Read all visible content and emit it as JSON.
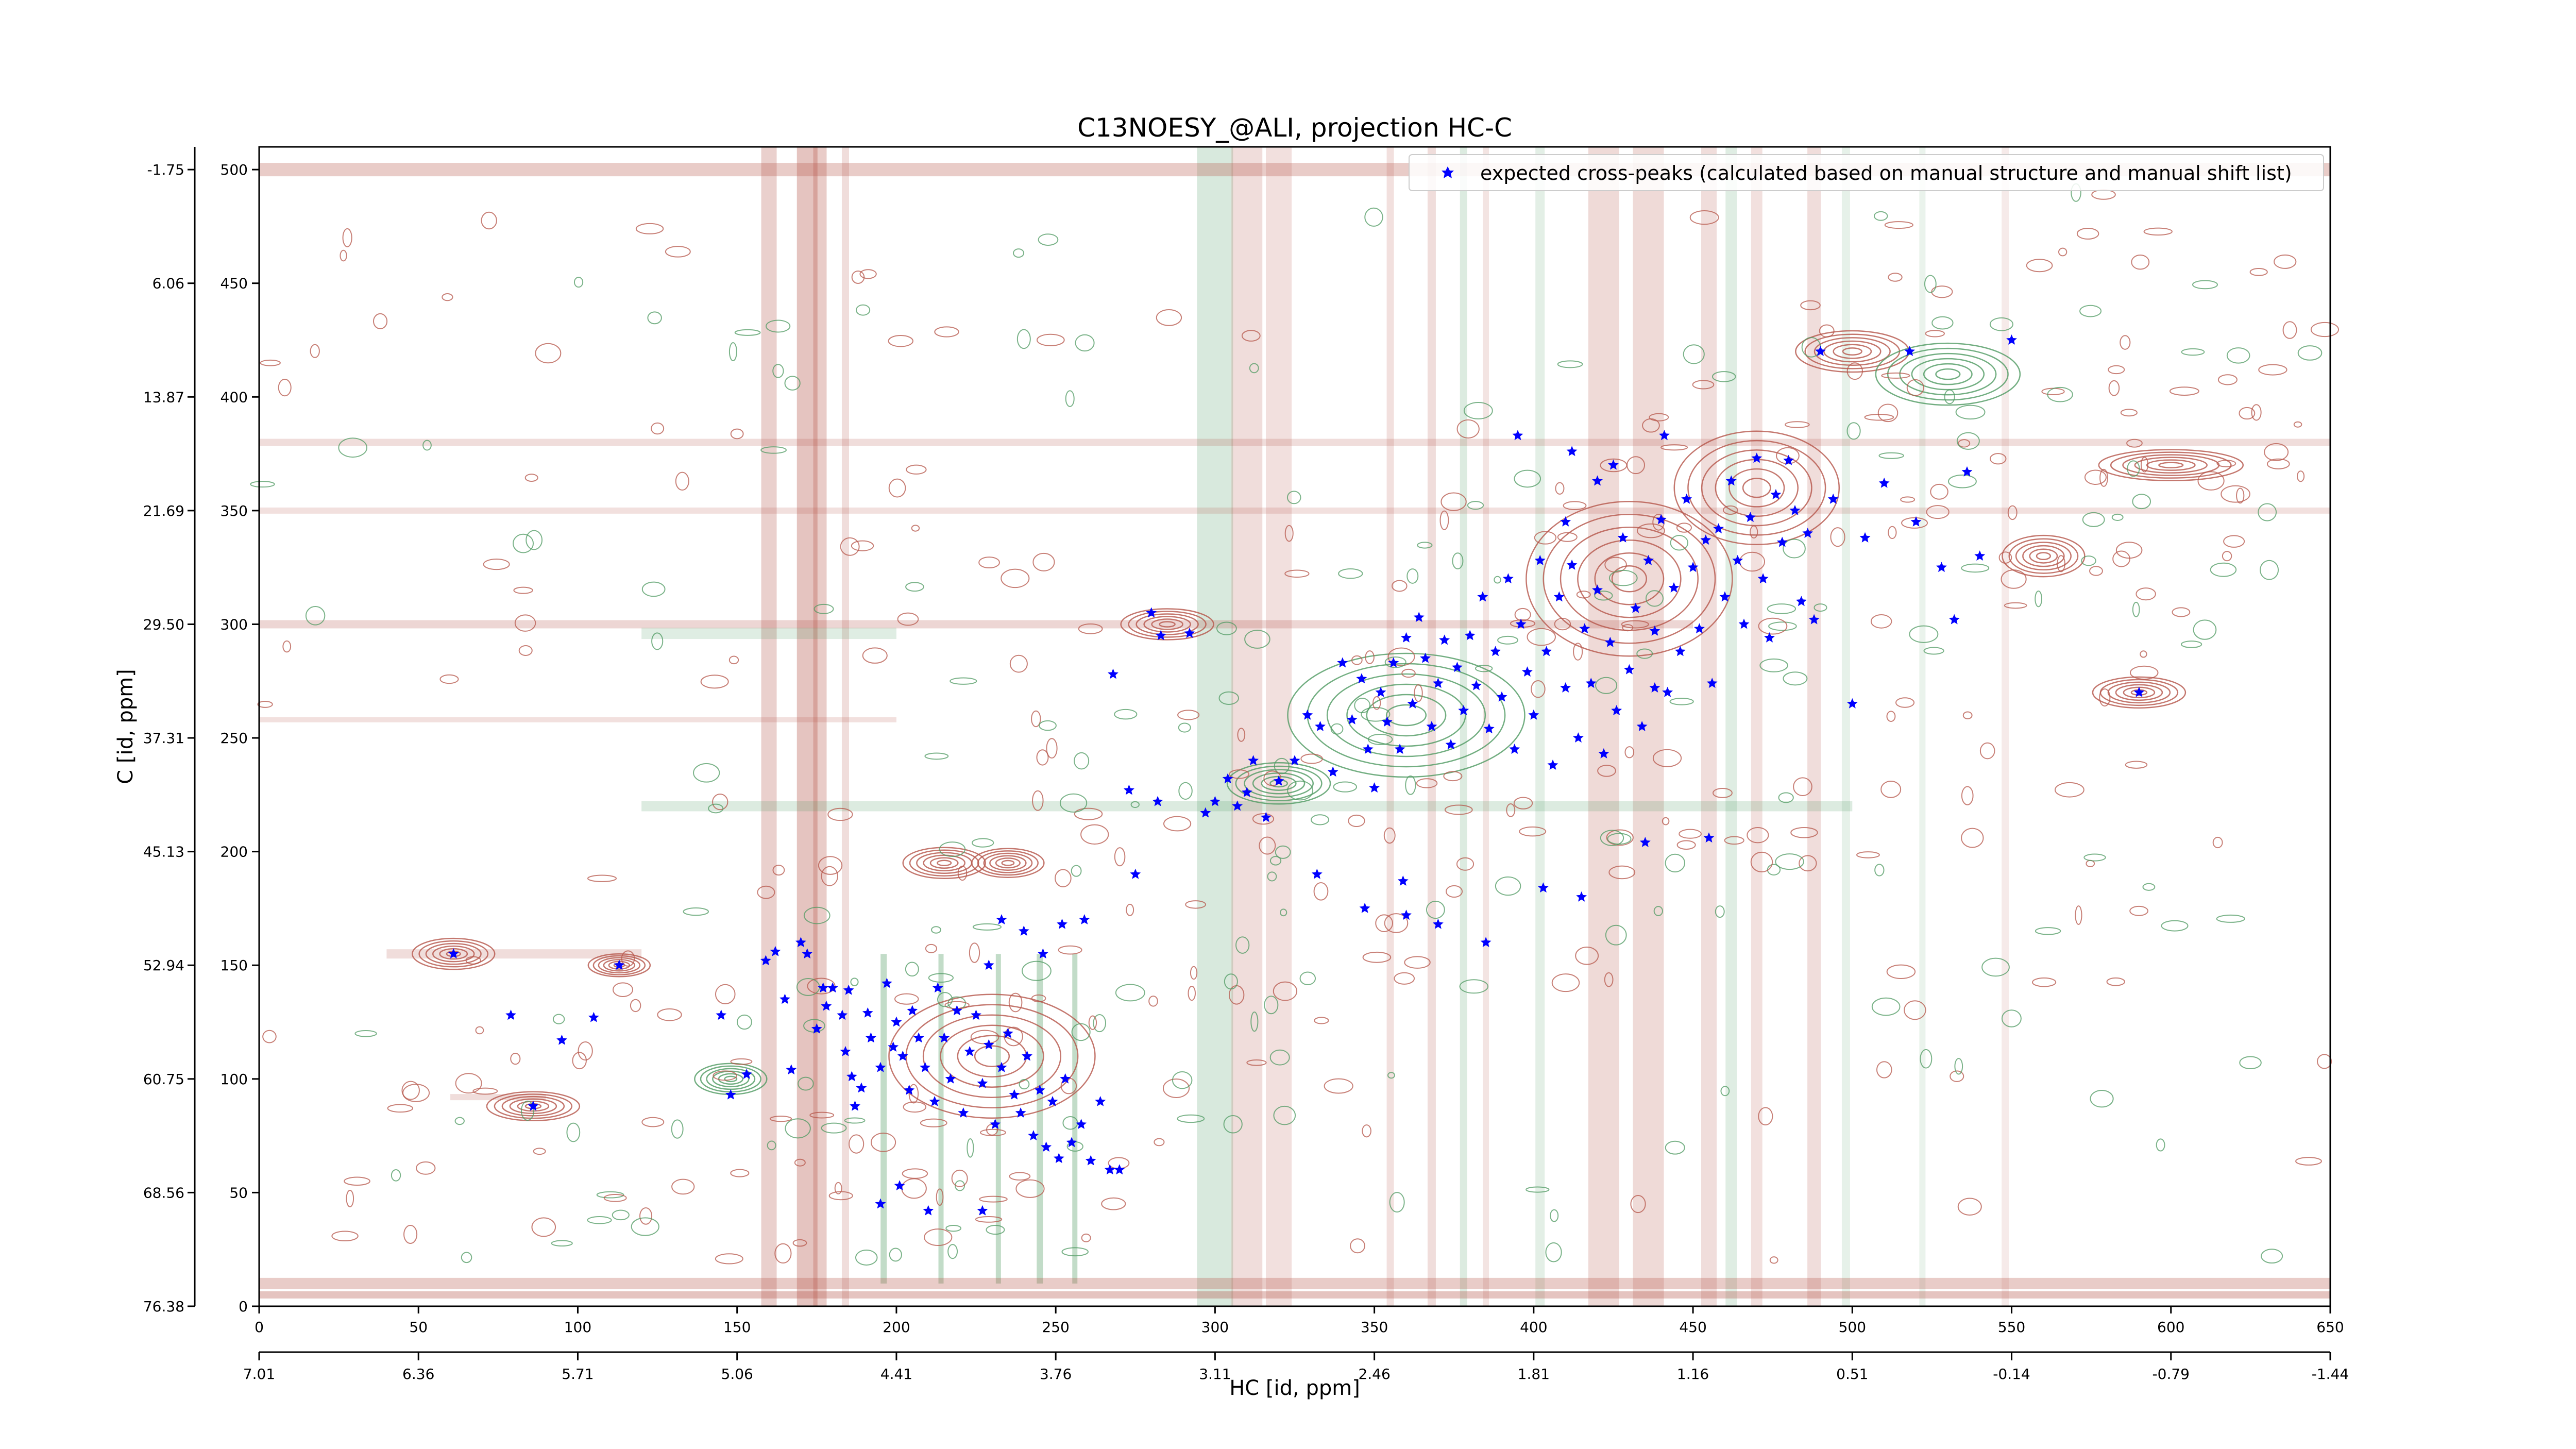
{
  "chart_data": {
    "type": "scatter",
    "title": "C13NOESY_@ALI, projection HC-C",
    "xlabel": "HC [id, ppm]",
    "ylabel": "C [id, ppm]",
    "xlim": [
      0,
      650
    ],
    "ylim": [
      0,
      510
    ],
    "x_ticks": [
      0,
      50,
      100,
      150,
      200,
      250,
      300,
      350,
      400,
      450,
      500,
      550,
      600,
      650
    ],
    "y_ticks": [
      0,
      50,
      100,
      150,
      200,
      250,
      300,
      350,
      400,
      450,
      500
    ],
    "x_ppm_ticks": [
      "7.01",
      "6.36",
      "5.71",
      "5.06",
      "4.41",
      "3.76",
      "3.11",
      "2.46",
      "1.81",
      "1.16",
      "0.51",
      "-0.14",
      "-0.79",
      "-1.44"
    ],
    "y_ppm_ticks": [
      "76.38",
      "68.56",
      "60.75",
      "52.94",
      "45.13",
      "37.31",
      "29.50",
      "21.69",
      "13.87",
      "6.06",
      "-1.75"
    ],
    "legend": {
      "placement": "top-right",
      "entries": [
        "expected cross-peaks (calculated based on manual structure and manual shift list)"
      ]
    },
    "colors": {
      "positive_contour": "#b5554a",
      "negative_contour": "#4f9a62",
      "expected_peak": "#0000ff"
    },
    "series": [
      {
        "name": "expected cross-peaks (calculated based on manual structure and manual shift list)",
        "points": [
          [
            61,
            155
          ],
          [
            79,
            128
          ],
          [
            86,
            88
          ],
          [
            95,
            117
          ],
          [
            105,
            127
          ],
          [
            113,
            150
          ],
          [
            145,
            128
          ],
          [
            148,
            93
          ],
          [
            153,
            102
          ],
          [
            159,
            152
          ],
          [
            162,
            156
          ],
          [
            165,
            135
          ],
          [
            167,
            104
          ],
          [
            170,
            160
          ],
          [
            172,
            155
          ],
          [
            175,
            122
          ],
          [
            177,
            140
          ],
          [
            178,
            132
          ],
          [
            180,
            140
          ],
          [
            183,
            128
          ],
          [
            184,
            112
          ],
          [
            185,
            139
          ],
          [
            186,
            101
          ],
          [
            187,
            88
          ],
          [
            189,
            96
          ],
          [
            191,
            129
          ],
          [
            192,
            118
          ],
          [
            195,
            105
          ],
          [
            197,
            142
          ],
          [
            199,
            114
          ],
          [
            200,
            125
          ],
          [
            202,
            110
          ],
          [
            204,
            95
          ],
          [
            205,
            130
          ],
          [
            207,
            118
          ],
          [
            209,
            105
          ],
          [
            212,
            90
          ],
          [
            213,
            140
          ],
          [
            215,
            118
          ],
          [
            217,
            100
          ],
          [
            219,
            130
          ],
          [
            221,
            85
          ],
          [
            223,
            112
          ],
          [
            225,
            128
          ],
          [
            227,
            98
          ],
          [
            229,
            115
          ],
          [
            231,
            80
          ],
          [
            233,
            105
          ],
          [
            235,
            120
          ],
          [
            237,
            93
          ],
          [
            239,
            85
          ],
          [
            241,
            110
          ],
          [
            243,
            75
          ],
          [
            245,
            95
          ],
          [
            247,
            70
          ],
          [
            249,
            90
          ],
          [
            251,
            65
          ],
          [
            253,
            100
          ],
          [
            255,
            72
          ],
          [
            258,
            80
          ],
          [
            261,
            64
          ],
          [
            264,
            90
          ],
          [
            267,
            60
          ],
          [
            270,
            60
          ],
          [
            275,
            190
          ],
          [
            195,
            45
          ],
          [
            201,
            53
          ],
          [
            210,
            42
          ],
          [
            227,
            42
          ],
          [
            229,
            150
          ],
          [
            233,
            170
          ],
          [
            240,
            165
          ],
          [
            246,
            155
          ],
          [
            252,
            168
          ],
          [
            259,
            170
          ],
          [
            268,
            278
          ],
          [
            273,
            227
          ],
          [
            280,
            305
          ],
          [
            282,
            222
          ],
          [
            283,
            295
          ],
          [
            292,
            296
          ],
          [
            297,
            217
          ],
          [
            300,
            222
          ],
          [
            304,
            232
          ],
          [
            307,
            220
          ],
          [
            310,
            226
          ],
          [
            312,
            240
          ],
          [
            316,
            215
          ],
          [
            320,
            231
          ],
          [
            325,
            240
          ],
          [
            329,
            260
          ],
          [
            333,
            255
          ],
          [
            337,
            235
          ],
          [
            340,
            283
          ],
          [
            343,
            258
          ],
          [
            346,
            276
          ],
          [
            348,
            245
          ],
          [
            350,
            228
          ],
          [
            352,
            270
          ],
          [
            354,
            257
          ],
          [
            356,
            283
          ],
          [
            358,
            245
          ],
          [
            360,
            294
          ],
          [
            362,
            265
          ],
          [
            364,
            303
          ],
          [
            366,
            285
          ],
          [
            368,
            255
          ],
          [
            370,
            274
          ],
          [
            372,
            293
          ],
          [
            374,
            247
          ],
          [
            376,
            281
          ],
          [
            378,
            262
          ],
          [
            380,
            295
          ],
          [
            382,
            273
          ],
          [
            384,
            312
          ],
          [
            386,
            254
          ],
          [
            388,
            288
          ],
          [
            390,
            268
          ],
          [
            392,
            320
          ],
          [
            394,
            245
          ],
          [
            396,
            300
          ],
          [
            398,
            279
          ],
          [
            400,
            260
          ],
          [
            402,
            328
          ],
          [
            404,
            288
          ],
          [
            406,
            238
          ],
          [
            408,
            312
          ],
          [
            410,
            272
          ],
          [
            412,
            326
          ],
          [
            414,
            250
          ],
          [
            416,
            298
          ],
          [
            418,
            274
          ],
          [
            420,
            315
          ],
          [
            422,
            243
          ],
          [
            424,
            292
          ],
          [
            426,
            262
          ],
          [
            428,
            338
          ],
          [
            430,
            280
          ],
          [
            432,
            307
          ],
          [
            434,
            255
          ],
          [
            436,
            328
          ],
          [
            438,
            297
          ],
          [
            440,
            346
          ],
          [
            442,
            270
          ],
          [
            444,
            316
          ],
          [
            446,
            288
          ],
          [
            448,
            355
          ],
          [
            450,
            325
          ],
          [
            452,
            298
          ],
          [
            454,
            337
          ],
          [
            456,
            274
          ],
          [
            458,
            342
          ],
          [
            460,
            312
          ],
          [
            462,
            363
          ],
          [
            464,
            328
          ],
          [
            466,
            300
          ],
          [
            468,
            347
          ],
          [
            470,
            373
          ],
          [
            472,
            320
          ],
          [
            474,
            294
          ],
          [
            476,
            357
          ],
          [
            478,
            336
          ],
          [
            480,
            372
          ],
          [
            482,
            350
          ],
          [
            484,
            310
          ],
          [
            486,
            340
          ],
          [
            488,
            302
          ],
          [
            490,
            420
          ],
          [
            494,
            355
          ],
          [
            500,
            265
          ],
          [
            504,
            338
          ],
          [
            510,
            362
          ],
          [
            518,
            420
          ],
          [
            520,
            345
          ],
          [
            528,
            325
          ],
          [
            532,
            302
          ],
          [
            536,
            367
          ],
          [
            540,
            330
          ],
          [
            550,
            425
          ],
          [
            590,
            270
          ],
          [
            332,
            190
          ],
          [
            359,
            187
          ],
          [
            403,
            184
          ],
          [
            347,
            175
          ],
          [
            360,
            172
          ],
          [
            370,
            168
          ],
          [
            385,
            160
          ],
          [
            415,
            180
          ],
          [
            435,
            204
          ],
          [
            455,
            206
          ],
          [
            410,
            345
          ],
          [
            420,
            363
          ],
          [
            438,
            272
          ],
          [
            412,
            376
          ],
          [
            425,
            370
          ],
          [
            395,
            383
          ],
          [
            441,
            383
          ]
        ]
      }
    ]
  }
}
